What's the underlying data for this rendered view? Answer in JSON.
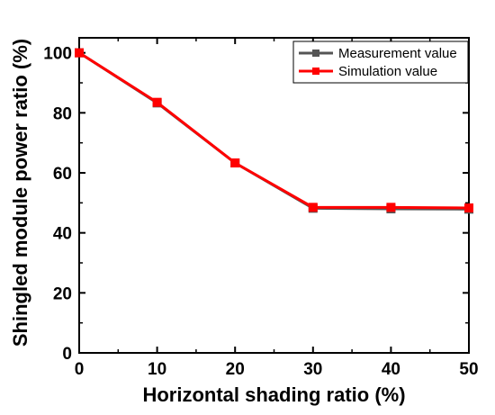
{
  "chart_data": {
    "type": "line",
    "xlabel": "Horizontal shading ratio  (%)",
    "ylabel": "Shingled module power ratio  (%)",
    "xlim": [
      0,
      50
    ],
    "ylim": [
      0,
      105
    ],
    "xticks": [
      0,
      10,
      20,
      30,
      40,
      50
    ],
    "yticks": [
      0,
      20,
      40,
      60,
      80,
      100
    ],
    "x": [
      0,
      10,
      20,
      30,
      40,
      50
    ],
    "series": [
      {
        "name": "Measurement value",
        "color": "#555555",
        "marker": "square",
        "values": [
          100,
          83.3,
          63.3,
          48.2,
          48.0,
          47.9
        ]
      },
      {
        "name": "Simulation value",
        "color": "#ff0000",
        "marker": "square",
        "values": [
          100,
          83.5,
          63.3,
          48.5,
          48.5,
          48.3
        ]
      }
    ],
    "legend_position": "top-right",
    "grid": false
  }
}
